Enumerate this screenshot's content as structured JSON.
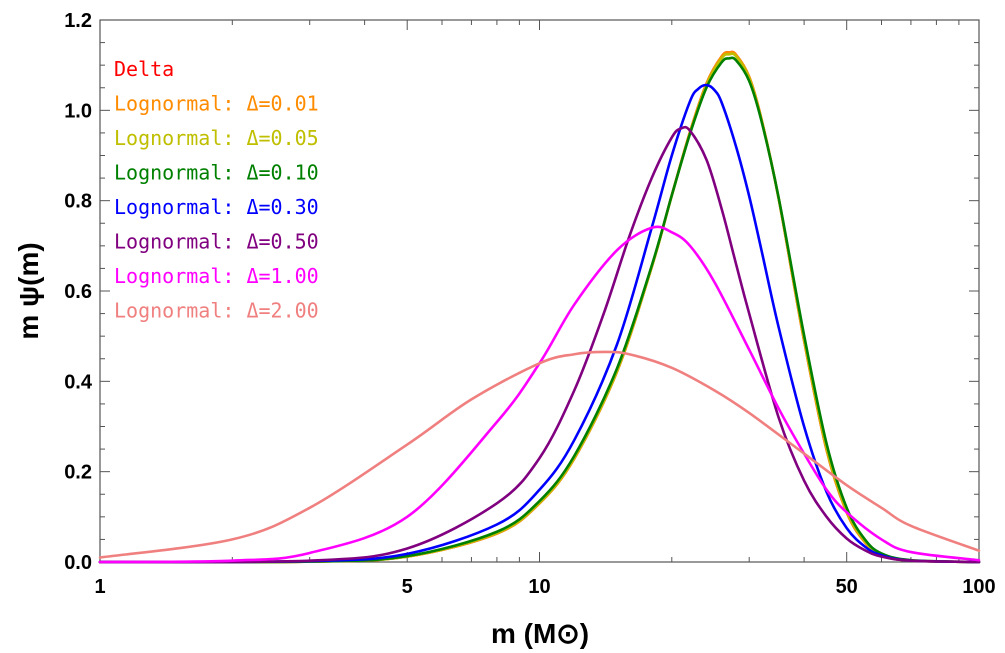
{
  "chart_data": {
    "type": "line",
    "title": "",
    "xlabel": "m (M⊙)",
    "ylabel": "m ψ(m)",
    "x_scale": "log",
    "xlim": [
      1,
      100
    ],
    "ylim": [
      0,
      1.2
    ],
    "x_ticks": [
      {
        "value": 1,
        "label": "1"
      },
      {
        "value": 5,
        "label": "5"
      },
      {
        "value": 10,
        "label": "10"
      },
      {
        "value": 50,
        "label": "50"
      },
      {
        "value": 100,
        "label": "100"
      }
    ],
    "y_ticks": [
      {
        "value": 0.0,
        "label": "0.0"
      },
      {
        "value": 0.2,
        "label": "0.2"
      },
      {
        "value": 0.4,
        "label": "0.4"
      },
      {
        "value": 0.6,
        "label": "0.6"
      },
      {
        "value": 0.8,
        "label": "0.8"
      },
      {
        "value": 1.0,
        "label": "1.0"
      },
      {
        "value": 1.2,
        "label": "1.2"
      }
    ],
    "grid": false,
    "legend_position": "top-left",
    "series": [
      {
        "name": "Delta",
        "color": "#ff0000",
        "x": [
          1,
          3,
          5,
          8,
          10,
          12,
          15,
          18,
          20,
          22,
          24,
          26,
          27,
          28,
          30,
          32,
          35,
          40,
          45,
          50,
          55,
          60,
          70,
          100
        ],
        "y": [
          0,
          0.001,
          0.012,
          0.063,
          0.13,
          0.229,
          0.421,
          0.653,
          0.812,
          0.952,
          1.06,
          1.12,
          1.128,
          1.123,
          1.074,
          0.98,
          0.805,
          0.49,
          0.248,
          0.11,
          0.044,
          0.015,
          0.003,
          0
        ]
      },
      {
        "name": "Lognormal: Δ=0.01",
        "label": "Lognormal: ",
        "delta_label": "Δ=0.01",
        "color": "#ff8c00",
        "x": [
          1,
          3,
          5,
          8,
          10,
          12,
          15,
          18,
          20,
          22,
          24,
          26,
          27,
          28,
          30,
          32,
          35,
          40,
          45,
          50,
          55,
          60,
          70,
          100
        ],
        "y": [
          0,
          0.001,
          0.012,
          0.063,
          0.13,
          0.229,
          0.421,
          0.653,
          0.812,
          0.952,
          1.06,
          1.12,
          1.128,
          1.123,
          1.074,
          0.98,
          0.805,
          0.49,
          0.248,
          0.11,
          0.044,
          0.015,
          0.003,
          0
        ]
      },
      {
        "name": "Lognormal: Δ=0.05",
        "label": "Lognormal: ",
        "delta_label": "Δ=0.05",
        "color": "#bfbf00",
        "x": [
          1,
          3,
          5,
          8,
          10,
          12,
          15,
          18,
          20,
          22,
          24,
          26,
          27,
          28,
          30,
          32,
          35,
          40,
          45,
          50,
          55,
          60,
          70,
          100
        ],
        "y": [
          0,
          0.001,
          0.012,
          0.064,
          0.131,
          0.23,
          0.422,
          0.653,
          0.811,
          0.95,
          1.057,
          1.116,
          1.124,
          1.12,
          1.072,
          0.979,
          0.806,
          0.494,
          0.252,
          0.113,
          0.046,
          0.016,
          0.003,
          0
        ]
      },
      {
        "name": "Lognormal: Δ=0.10",
        "label": "Lognormal: ",
        "delta_label": "Δ=0.10",
        "color": "#008000",
        "x": [
          1,
          3,
          5,
          8,
          10,
          12,
          15,
          18,
          20,
          22,
          24,
          26,
          27,
          28,
          30,
          32,
          35,
          40,
          45,
          50,
          55,
          60,
          70,
          100
        ],
        "y": [
          0,
          0.001,
          0.013,
          0.067,
          0.135,
          0.235,
          0.428,
          0.656,
          0.812,
          0.948,
          1.051,
          1.107,
          1.115,
          1.111,
          1.065,
          0.976,
          0.807,
          0.502,
          0.262,
          0.12,
          0.05,
          0.019,
          0.004,
          0
        ]
      },
      {
        "name": "Lognormal: Δ=0.30",
        "label": "Lognormal: ",
        "delta_label": "Δ=0.30",
        "color": "#0000ff",
        "x": [
          1,
          3,
          5,
          8,
          10,
          12,
          15,
          18,
          20,
          22,
          23,
          24,
          25,
          26,
          28,
          30,
          32,
          35,
          40,
          45,
          50,
          55,
          60,
          70,
          100
        ],
        "y": [
          0,
          0.002,
          0.018,
          0.083,
          0.16,
          0.27,
          0.481,
          0.74,
          0.9,
          1.02,
          1.048,
          1.056,
          1.045,
          1.016,
          0.92,
          0.81,
          0.69,
          0.52,
          0.3,
          0.155,
          0.075,
          0.034,
          0.015,
          0.003,
          0
        ]
      },
      {
        "name": "Lognormal: Δ=0.50",
        "label": "Lognormal: ",
        "delta_label": "Δ=0.50",
        "color": "#800080",
        "x": [
          1,
          3,
          5,
          8,
          10,
          12,
          14,
          16,
          18,
          20,
          21,
          22,
          24,
          26,
          28,
          30,
          35,
          40,
          45,
          50,
          55,
          60,
          70,
          100
        ],
        "y": [
          0,
          0.003,
          0.03,
          0.13,
          0.23,
          0.38,
          0.55,
          0.72,
          0.85,
          0.94,
          0.96,
          0.955,
          0.89,
          0.78,
          0.66,
          0.55,
          0.32,
          0.18,
          0.1,
          0.052,
          0.026,
          0.012,
          0.003,
          0
        ]
      },
      {
        "name": "Lognormal: Δ=1.00",
        "label": "Lognormal: ",
        "delta_label": "Δ=1.00",
        "color": "#ff00ff",
        "x": [
          1,
          2,
          3,
          5,
          8,
          10,
          12,
          15,
          18,
          20,
          22,
          25,
          30,
          35,
          40,
          45,
          50,
          60,
          70,
          100
        ],
        "y": [
          0,
          0.003,
          0.02,
          0.1,
          0.31,
          0.44,
          0.57,
          0.69,
          0.74,
          0.73,
          0.7,
          0.62,
          0.47,
          0.34,
          0.24,
          0.16,
          0.11,
          0.05,
          0.022,
          0.004
        ]
      },
      {
        "name": "Lognormal: Δ=2.00",
        "label": "Lognormal: ",
        "delta_label": "Δ=2.00",
        "color": "#f08080",
        "x": [
          1,
          2,
          3,
          5,
          7,
          10,
          12,
          14,
          16,
          20,
          25,
          30,
          40,
          50,
          60,
          70,
          100
        ],
        "y": [
          0.01,
          0.05,
          0.12,
          0.26,
          0.36,
          0.44,
          0.46,
          0.465,
          0.46,
          0.43,
          0.38,
          0.33,
          0.24,
          0.17,
          0.12,
          0.08,
          0.025
        ]
      }
    ]
  }
}
